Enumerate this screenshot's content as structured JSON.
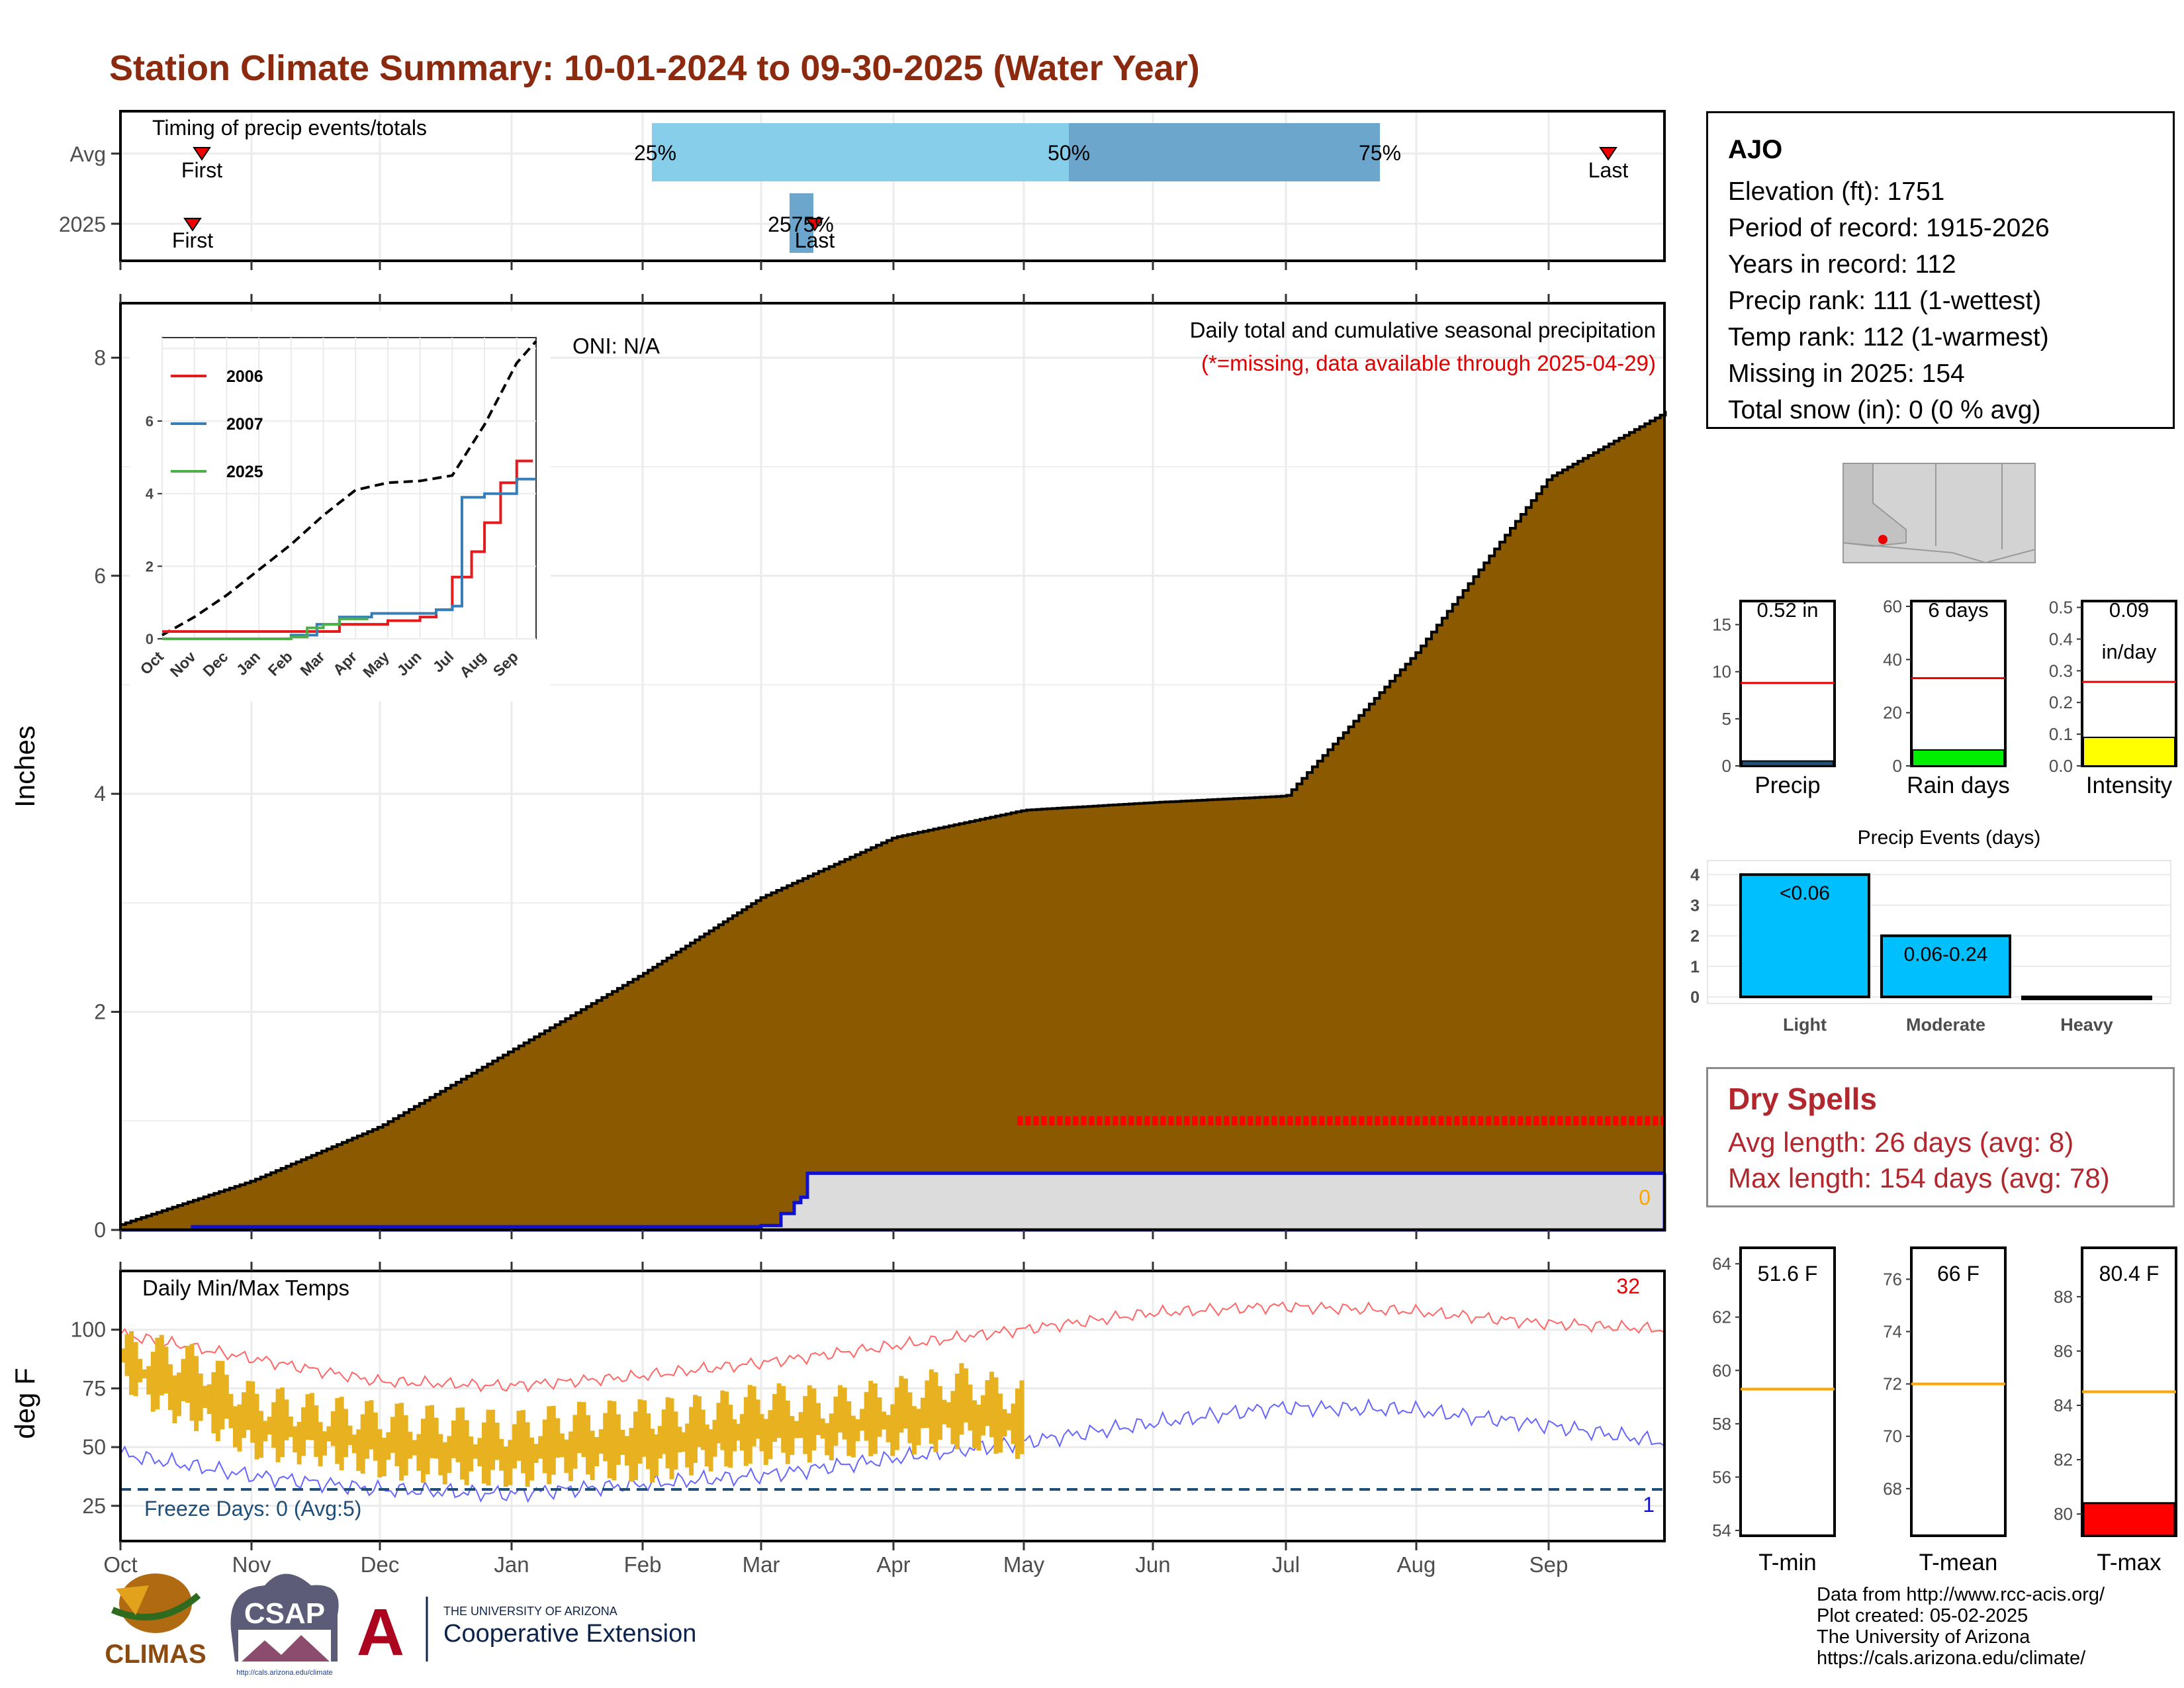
{
  "title": "Station Climate Summary: 10-01-2024 to 09-30-2025 (Water Year)",
  "timing": {
    "label": "Timing of precip events/totals",
    "rows": [
      "Avg",
      "2025"
    ],
    "avg_pct_labels": [
      "25%",
      "50%",
      "75%"
    ],
    "first_label": "First",
    "last_label": "Last",
    "overlap_label": "2575%"
  },
  "main": {
    "ylabel": "Inches",
    "yticks": [
      "0",
      "2",
      "4",
      "6",
      "8"
    ],
    "heading": "Daily total and cumulative seasonal precipitation",
    "missing_note": "(*=missing, data available through 2025-04-29)",
    "oni": "ONI: N/A",
    "snow_value": "0"
  },
  "months": [
    "Oct",
    "Nov",
    "Dec",
    "Jan",
    "Feb",
    "Mar",
    "Apr",
    "May",
    "Jun",
    "Jul",
    "Aug",
    "Sep"
  ],
  "inset": {
    "legend": [
      "2006",
      "2007",
      "2025"
    ],
    "yticks": [
      "0",
      "2",
      "4",
      "6"
    ],
    "months": [
      "Oct",
      "Nov",
      "Dec",
      "Jan",
      "Feb",
      "Mar",
      "Apr",
      "May",
      "Jun",
      "Jul",
      "Aug",
      "Sep"
    ]
  },
  "temps": {
    "label": "Daily Min/Max Temps",
    "ylabel": "deg F",
    "yticks": [
      "25",
      "50",
      "75",
      "100"
    ],
    "freeze_label": "Freeze Days: 0 (Avg:5)",
    "count_top": "32",
    "count_bottom": "1"
  },
  "station": {
    "name": "AJO",
    "elevation": "Elevation (ft): 1751",
    "period": "Period of record: 1915-2026",
    "years": "Years in record: 112",
    "precip_rank": "Precip rank: 111 (1-wettest)",
    "temp_rank": "Temp rank: 112 (1-warmest)",
    "missing": "Missing in 2025: 154",
    "snow": "Total snow (in): 0 (0 % avg)"
  },
  "mini_bars": [
    {
      "label": "Precip",
      "value_text": "0.52 in",
      "value_text2": "",
      "yticks": [
        "0",
        "5",
        "10",
        "15"
      ]
    },
    {
      "label": "Rain days",
      "value_text": "6 days",
      "value_text2": "",
      "yticks": [
        "0",
        "20",
        "40",
        "60"
      ]
    },
    {
      "label": "Intensity",
      "value_text": "0.09",
      "value_text2": "in/day",
      "yticks": [
        "0.0",
        "0.1",
        "0.2",
        "0.3",
        "0.4",
        "0.5"
      ]
    }
  ],
  "events": {
    "title": "Precip Events (days)",
    "categories": [
      "Light",
      "Moderate",
      "Heavy"
    ],
    "bar_labels": [
      "<0.06",
      "0.06-0.24",
      ""
    ],
    "yticks": [
      "0",
      "1",
      "2",
      "3",
      "4"
    ]
  },
  "dry_spells": {
    "title": "Dry Spells",
    "avg": "Avg length: 26 days (avg: 8)",
    "max": "Max length: 154 days (avg: 78)"
  },
  "temp_bars": [
    {
      "label": "T-min",
      "value_text": "51.6 F",
      "yticks": [
        "54",
        "56",
        "58",
        "60",
        "62",
        "64"
      ]
    },
    {
      "label": "T-mean",
      "value_text": "66 F",
      "yticks": [
        "68",
        "70",
        "72",
        "74",
        "76"
      ]
    },
    {
      "label": "T-max",
      "value_text": "80.4 F",
      "yticks": [
        "80",
        "82",
        "84",
        "86",
        "88"
      ]
    }
  ],
  "credits": {
    "line1": "Data from http://www.rcc-acis.org/",
    "line2": "Plot created: 05-02-2025",
    "line3": "The University of Arizona",
    "line4": "https://cals.arizona.edu/climate/"
  },
  "logos": {
    "climas": "CLIMAS",
    "csap": "CSAP",
    "csap_url": "http://cals.arizona.edu/climate",
    "ua_line1": "THE UNIVERSITY OF ARIZONA",
    "ua_line2": "Cooperative Extension"
  },
  "colors": {
    "title": "#8b2a0e",
    "avg_cumulative": "#8b5a00",
    "obs_cumulative": "#1010d0",
    "missing": "#ff0000",
    "tmax_avg": "#ff0000",
    "tmin_avg": "#0000ff",
    "temp_range": "#e8b120",
    "freeze": "#1f4e79",
    "dry_spells": "#b2272d"
  },
  "chart_data": [
    {
      "type": "area",
      "title": "Daily total and cumulative seasonal precipitation",
      "ylabel": "Inches",
      "ylim": [
        0,
        8.5
      ],
      "x_months": [
        "Oct",
        "Nov",
        "Dec",
        "Jan",
        "Feb",
        "Mar",
        "Apr",
        "May",
        "Jun",
        "Jul",
        "Aug",
        "Sep"
      ],
      "series": [
        {
          "name": "",
          "x_month": [
            0,
            1,
            2,
            3,
            4,
            5,
            6,
            7,
            8,
            9,
            10,
            11,
            11.9
          ],
          "values": [
            0.05,
            0.45,
            0.95,
            1.65,
            2.35,
            3.05,
            3.6,
            3.85,
            3.92,
            3.98,
            5.3,
            6.9,
            7.5
          ]
        },
        {
          "name": "",
          "x_month": [
            0,
            0.55,
            5.0,
            5.15,
            5.25,
            5.3,
            5.35,
            11.9
          ],
          "values": [
            0,
            0.03,
            0.04,
            0.15,
            0.25,
            0.3,
            0.52,
            0.52
          ]
        }
      ],
      "missing_from_month": 6.95
    },
    {
      "type": "line",
      "ylim": [
        0,
        8.3
      ],
      "x_months": [
        "Oct",
        "Nov",
        "Dec",
        "Jan",
        "Feb",
        "Mar",
        "Apr",
        "May",
        "Jun",
        "Jul",
        "Aug",
        "Sep"
      ],
      "series": [
        {
          "name": "",
          "x_month": [
            0,
            1,
            2,
            3,
            4,
            5,
            6,
            7,
            8,
            9,
            10,
            11,
            11.6
          ],
          "values": [
            0.1,
            0.6,
            1.2,
            1.9,
            2.6,
            3.4,
            4.1,
            4.3,
            4.35,
            4.5,
            5.9,
            7.6,
            8.2
          ]
        },
        {
          "name": "2006",
          "x_month": [
            0,
            5.1,
            5.5,
            7,
            8,
            8.5,
            9,
            9.6,
            10,
            10.5,
            11,
            11.5
          ],
          "values": [
            0.2,
            0.2,
            0.4,
            0.5,
            0.6,
            0.8,
            1.7,
            2.4,
            3.2,
            4.3,
            4.9,
            4.9
          ]
        },
        {
          "name": "2007",
          "x_month": [
            0,
            4,
            4.8,
            5.5,
            6.5,
            7.5,
            8.5,
            9,
            9.3,
            10,
            11,
            11.6
          ],
          "values": [
            0,
            0.1,
            0.4,
            0.6,
            0.7,
            0.7,
            0.8,
            0.9,
            3.9,
            4.0,
            4.4,
            4.4
          ]
        },
        {
          "name": "2025",
          "x_month": [
            0,
            3.5,
            4,
            4.5,
            5,
            5.5,
            6.4
          ],
          "values": [
            0,
            0,
            0.05,
            0.3,
            0.4,
            0.55,
            0.55
          ]
        }
      ]
    },
    {
      "type": "line",
      "title": "Daily Min/Max Temps",
      "ylabel": "deg F",
      "ylim": [
        10,
        125
      ],
      "x_months": [
        "Oct",
        "Nov",
        "Dec",
        "Jan",
        "Feb",
        "Mar",
        "Apr",
        "May",
        "Jun",
        "Jul",
        "Aug",
        "Sep"
      ],
      "series": [
        {
          "name": "",
          "x_month": [
            0,
            1,
            2,
            3,
            4,
            5,
            6,
            7,
            8,
            9,
            10,
            11,
            12
          ],
          "values": [
            98,
            88,
            78,
            76,
            80,
            86,
            93,
            100,
            107,
            110,
            108,
            103,
            100
          ]
        },
        {
          "name": "",
          "x_month": [
            0,
            1,
            2,
            3,
            4,
            5,
            6,
            7,
            8,
            9,
            10,
            11,
            12
          ],
          "values": [
            47,
            38,
            32,
            30,
            34,
            38,
            45,
            52,
            60,
            67,
            66,
            60,
            52
          ]
        },
        {
          "name": "",
          "x_month": [
            0,
            0.3,
            0.6,
            1,
            1.5,
            2,
            2.5,
            3,
            3.5,
            4,
            4.5,
            5,
            5.5,
            6,
            6.5,
            7
          ],
          "values": [
            92,
            90,
            85,
            70,
            65,
            62,
            60,
            58,
            62,
            63,
            65,
            70,
            68,
            72,
            78,
            70
          ]
        },
        {
          "name": "",
          "x_month": [
            0,
            0.3,
            0.6,
            1,
            1.5,
            2,
            2.5,
            3,
            3.5,
            4,
            4.5,
            5,
            5.5,
            6,
            6.5,
            7
          ],
          "values": [
            80,
            68,
            62,
            50,
            48,
            42,
            40,
            38,
            42,
            40,
            45,
            48,
            50,
            52,
            55,
            50
          ]
        }
      ]
    },
    {
      "type": "bar",
      "categories": [
        "Precip",
        "Rain days",
        "Intensity"
      ],
      "values": [
        0.52,
        6,
        0.09
      ],
      "averages": [
        8.8,
        33,
        0.265
      ],
      "ylims": [
        [
          0,
          17.5
        ],
        [
          0,
          62
        ],
        [
          0,
          0.52
        ]
      ]
    },
    {
      "type": "bar",
      "title": "Precip Events (days)",
      "categories": [
        "Light",
        "Moderate",
        "Heavy"
      ],
      "values": [
        4,
        2,
        0
      ],
      "ylim": [
        0,
        4.2
      ]
    },
    {
      "type": "bar",
      "categories": [
        "T-min",
        "T-mean",
        "T-max"
      ],
      "values": [
        51.6,
        66,
        80.4
      ],
      "averages": [
        59.3,
        72.0,
        84.5
      ],
      "ylims": [
        [
          53.8,
          64.6
        ],
        [
          66.2,
          77.2
        ],
        [
          79.2,
          89.8
        ]
      ]
    }
  ]
}
